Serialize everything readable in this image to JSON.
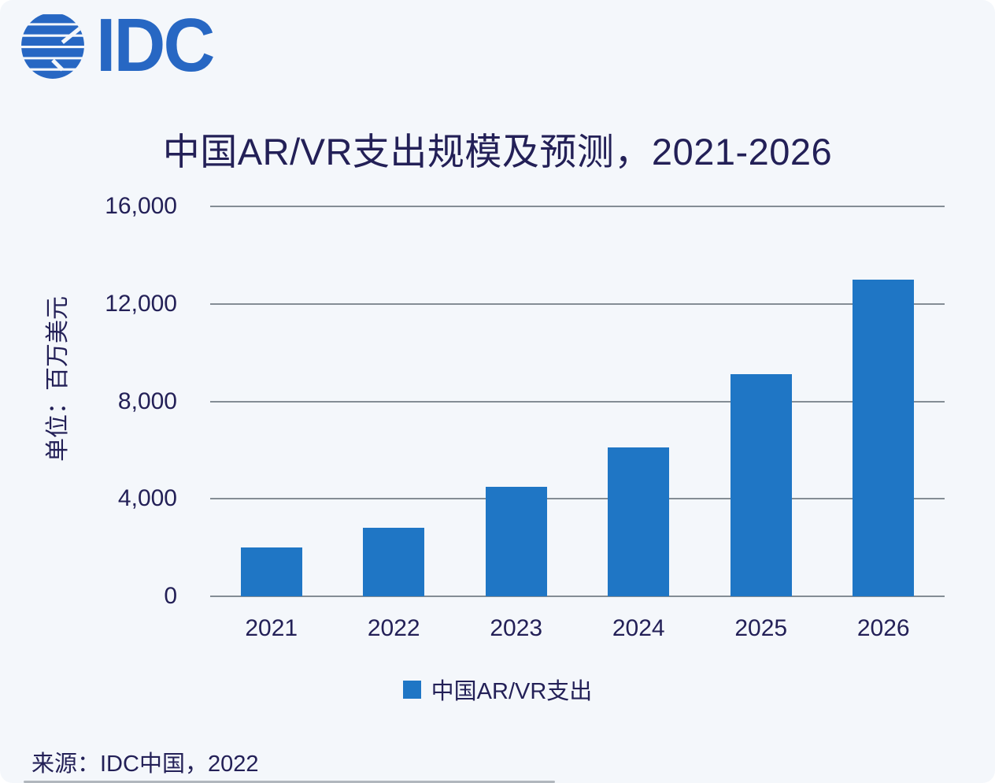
{
  "logo": {
    "text": "IDC",
    "brand_color": "#2767c3"
  },
  "chart_data": {
    "type": "bar",
    "title": "中国AR/VR支出规模及预测，2021-2026",
    "unit_label": "单位：百万美元",
    "categories": [
      "2021",
      "2022",
      "2023",
      "2024",
      "2025",
      "2026"
    ],
    "series": [
      {
        "name": "中国AR/VR支出",
        "color": "#1f76c5",
        "values": [
          2000,
          2800,
          4500,
          6100,
          9100,
          13000
        ]
      }
    ],
    "ylim": [
      0,
      16000
    ],
    "yticks": [
      0,
      4000,
      8000,
      12000,
      16000
    ],
    "ytick_labels": [
      "0",
      "4,000",
      "8,000",
      "12,000",
      "16,000"
    ],
    "grid": true,
    "legend_position": "bottom"
  },
  "legend": {
    "swatch_color": "#1f76c5",
    "label": "中国AR/VR支出"
  },
  "footer": {
    "source": "来源：IDC中国，2022"
  },
  "colors": {
    "background": "#f4f7fb",
    "text": "#232057",
    "gridline": "#848d95",
    "bar": "#1f76c5",
    "logo_blue": "#2767c3"
  }
}
